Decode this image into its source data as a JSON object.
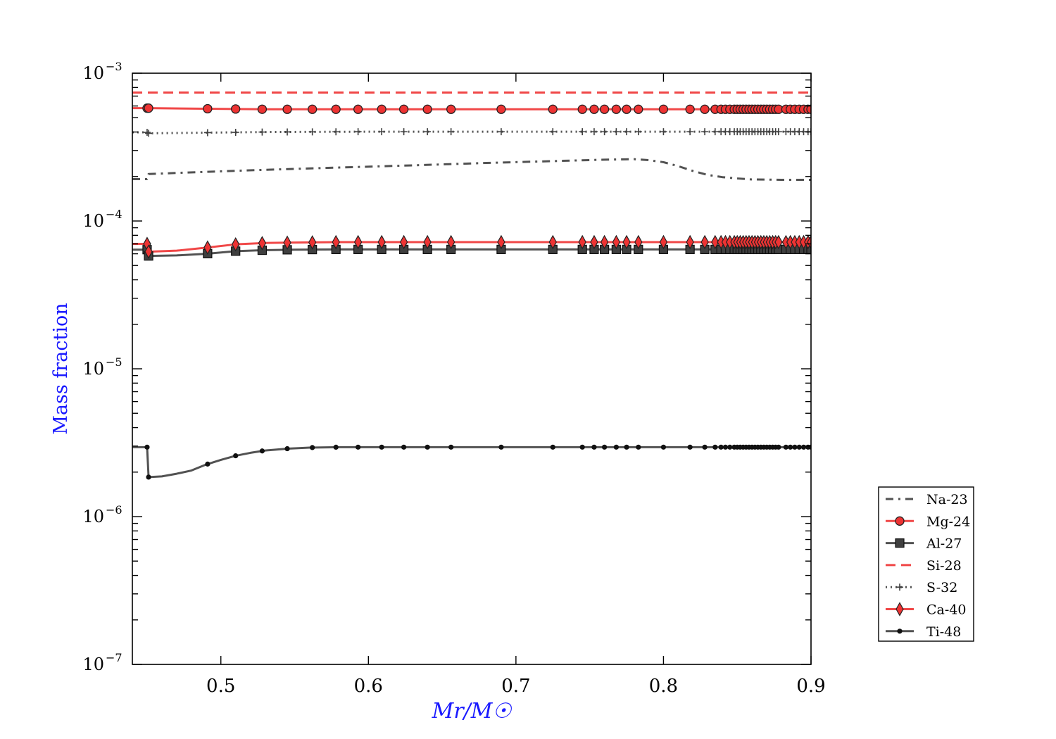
{
  "chart_data": {
    "type": "line",
    "title": "",
    "xlabel": "Mr/M☉",
    "ylabel": "Mass fraction",
    "xlim": [
      0.44,
      0.9
    ],
    "ylim": [
      1e-07,
      0.001
    ],
    "yscale": "log",
    "grid": false,
    "legend_position": "outside-right-bottom",
    "x_ticks": [
      {
        "value": 0.5,
        "label": "0.5"
      },
      {
        "value": 0.6,
        "label": "0.6"
      },
      {
        "value": 0.7,
        "label": "0.7"
      },
      {
        "value": 0.8,
        "label": "0.8"
      },
      {
        "value": 0.9,
        "label": "0.9"
      }
    ],
    "y_ticks": [
      {
        "value": 0.001,
        "base": "10",
        "exp": "−3"
      },
      {
        "value": 0.0001,
        "base": "10",
        "exp": "−4"
      },
      {
        "value": 1e-05,
        "base": "10",
        "exp": "−5"
      },
      {
        "value": 1e-06,
        "base": "10",
        "exp": "−6"
      },
      {
        "value": 1e-07,
        "base": "10",
        "exp": "−7"
      }
    ],
    "marker_x": [
      0.45,
      0.451,
      0.491,
      0.51,
      0.528,
      0.545,
      0.562,
      0.578,
      0.593,
      0.609,
      0.624,
      0.64,
      0.656,
      0.69,
      0.725,
      0.745,
      0.753,
      0.76,
      0.768,
      0.775,
      0.783,
      0.8,
      0.818,
      0.828,
      0.835,
      0.839,
      0.842,
      0.845,
      0.848,
      0.85,
      0.852,
      0.854,
      0.856,
      0.858,
      0.86,
      0.862,
      0.864,
      0.866,
      0.868,
      0.87,
      0.872,
      0.874,
      0.876,
      0.878,
      0.883,
      0.886,
      0.889,
      0.892,
      0.895,
      0.898,
      0.9
    ],
    "series": [
      {
        "name": "Na-23",
        "color": "#3f3f3f",
        "dash": "dashdot",
        "marker": "none",
        "x": [
          0.44,
          0.45,
          0.451,
          0.49,
          0.53,
          0.58,
          0.63,
          0.68,
          0.73,
          0.76,
          0.78,
          0.79,
          0.8,
          0.81,
          0.82,
          0.83,
          0.84,
          0.85,
          0.86,
          0.88,
          0.9
        ],
        "values": [
          0.000192,
          0.000192,
          0.000208,
          0.000215,
          0.000222,
          0.00023,
          0.000238,
          0.000247,
          0.000255,
          0.00026,
          0.000262,
          0.000258,
          0.00025,
          0.000235,
          0.000218,
          0.000205,
          0.000198,
          0.000194,
          0.000191,
          0.00019,
          0.00019
        ]
      },
      {
        "name": "Mg-24",
        "color": "#ee3333",
        "dash": "solid",
        "marker": "circle",
        "x": [
          0.44,
          0.45,
          0.451,
          0.49,
          0.53,
          0.6,
          0.7,
          0.8,
          0.9
        ],
        "values": [
          0.00058,
          0.00058,
          0.00058,
          0.000575,
          0.00057,
          0.00057,
          0.00057,
          0.00057,
          0.00057
        ]
      },
      {
        "name": "Al-27",
        "color": "#3f3f3f",
        "dash": "solid",
        "marker": "square",
        "x": [
          0.44,
          0.45,
          0.451,
          0.47,
          0.49,
          0.51,
          0.53,
          0.55,
          0.58,
          0.65,
          0.75,
          0.85,
          0.9
        ],
        "values": [
          6.4e-05,
          6.4e-05,
          5.8e-05,
          5.85e-05,
          6e-05,
          6.25e-05,
          6.35e-05,
          6.4e-05,
          6.42e-05,
          6.42e-05,
          6.42e-05,
          6.42e-05,
          6.42e-05
        ]
      },
      {
        "name": "Si-28",
        "color": "#ee3333",
        "dash": "dashed",
        "marker": "none",
        "x": [
          0.44,
          0.9
        ],
        "values": [
          0.00074,
          0.00074
        ]
      },
      {
        "name": "S-32",
        "color": "#3f3f3f",
        "dash": "dotted",
        "marker": "plus",
        "x": [
          0.44,
          0.45,
          0.451,
          0.49,
          0.53,
          0.6,
          0.7,
          0.8,
          0.9
        ],
        "values": [
          0.000398,
          0.000398,
          0.000392,
          0.000396,
          0.0004,
          0.000402,
          0.000402,
          0.000402,
          0.000402
        ]
      },
      {
        "name": "Ca-40",
        "color": "#ee3333",
        "dash": "solid",
        "marker": "diamond",
        "x": [
          0.44,
          0.45,
          0.451,
          0.47,
          0.49,
          0.51,
          0.53,
          0.55,
          0.58,
          0.65,
          0.75,
          0.85,
          0.9
        ],
        "values": [
          7e-05,
          7e-05,
          6.2e-05,
          6.3e-05,
          6.6e-05,
          6.95e-05,
          7.1e-05,
          7.15e-05,
          7.2e-05,
          7.2e-05,
          7.2e-05,
          7.2e-05,
          7.2e-05
        ]
      },
      {
        "name": "Ti-48",
        "color": "#3f3f3f",
        "dash": "solid",
        "marker": "dot",
        "x": [
          0.44,
          0.45,
          0.451,
          0.46,
          0.47,
          0.48,
          0.49,
          0.5,
          0.51,
          0.52,
          0.53,
          0.545,
          0.56,
          0.58,
          0.6,
          0.65,
          0.75,
          0.85,
          0.9
        ],
        "values": [
          2.95e-06,
          2.95e-06,
          1.85e-06,
          1.87e-06,
          1.95e-06,
          2.05e-06,
          2.25e-06,
          2.42e-06,
          2.58e-06,
          2.7e-06,
          2.8e-06,
          2.88e-06,
          2.93e-06,
          2.95e-06,
          2.95e-06,
          2.95e-06,
          2.95e-06,
          2.95e-06,
          2.95e-06
        ]
      }
    ]
  }
}
